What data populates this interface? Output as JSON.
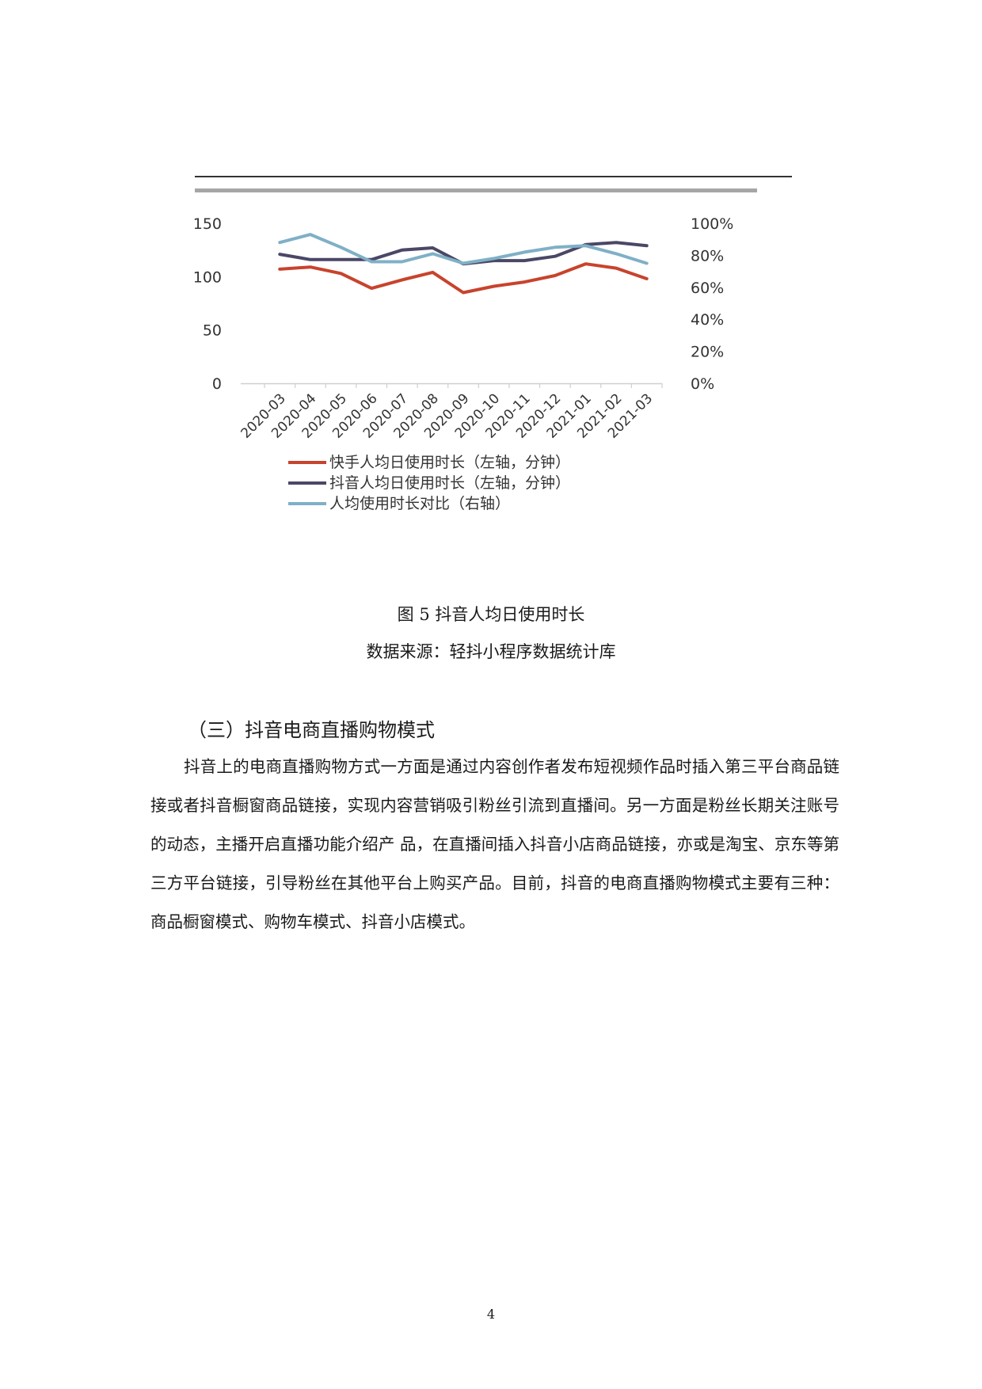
{
  "chart_data": {
    "type": "line",
    "categories": [
      "2020-03",
      "2020-04",
      "2020-05",
      "2020-06",
      "2020-07",
      "2020-08",
      "2020-09",
      "2020-10",
      "2020-11",
      "2020-12",
      "2021-01",
      "2021-02",
      "2021-03"
    ],
    "y_left": {
      "ticks": [
        "150",
        "100",
        "50",
        "0"
      ],
      "range": [
        0,
        150
      ]
    },
    "y_right": {
      "ticks": [
        "100%",
        "80%",
        "60%",
        "40%",
        "20%",
        "0%"
      ],
      "range": [
        0,
        100
      ]
    },
    "series": [
      {
        "name": "快手人均日使用时长（左轴，分钟）",
        "axis": "left",
        "color": "#c8432d",
        "values": [
          107,
          109,
          103,
          89,
          97,
          104,
          85,
          91,
          95,
          101,
          112,
          108,
          98
        ]
      },
      {
        "name": "抖音人均日使用时长（左轴，分钟）",
        "axis": "left",
        "color": "#4a4766",
        "values": [
          121,
          116,
          116,
          116,
          125,
          127,
          112,
          115,
          115,
          119,
          130,
          132,
          129
        ]
      },
      {
        "name": "人均使用时长对比（右轴）",
        "axis": "right",
        "color": "#7fb0c6",
        "values": [
          88,
          93,
          85,
          76,
          76,
          81,
          75,
          78,
          82,
          85,
          86,
          81,
          75
        ]
      }
    ],
    "legend_position": "bottom",
    "grid": false
  },
  "caption": {
    "figure": "图 5 抖音人均日使用时长",
    "source": "数据来源：轻抖小程序数据统计库"
  },
  "section": {
    "heading": "（三）抖音电商直播购物模式",
    "paragraph": "抖音上的电商直播购物方式一方面是通过内容创作者发布短视频作品时插入第三平台商品链接或者抖音橱窗商品链接，实现内容营销吸引粉丝引流到直播间。另一方面是粉丝长期关注账号的动态，主播开启直播功能介绍产 品，在直播间插入抖音小店商品链接，亦或是淘宝、京东等第三方平台链接，引导粉丝在其他平台上购买产品。目前，抖音的电商直播购物模式主要有三种：商品橱窗模式、购物车模式、抖音小店模式。"
  },
  "page_number": "4"
}
